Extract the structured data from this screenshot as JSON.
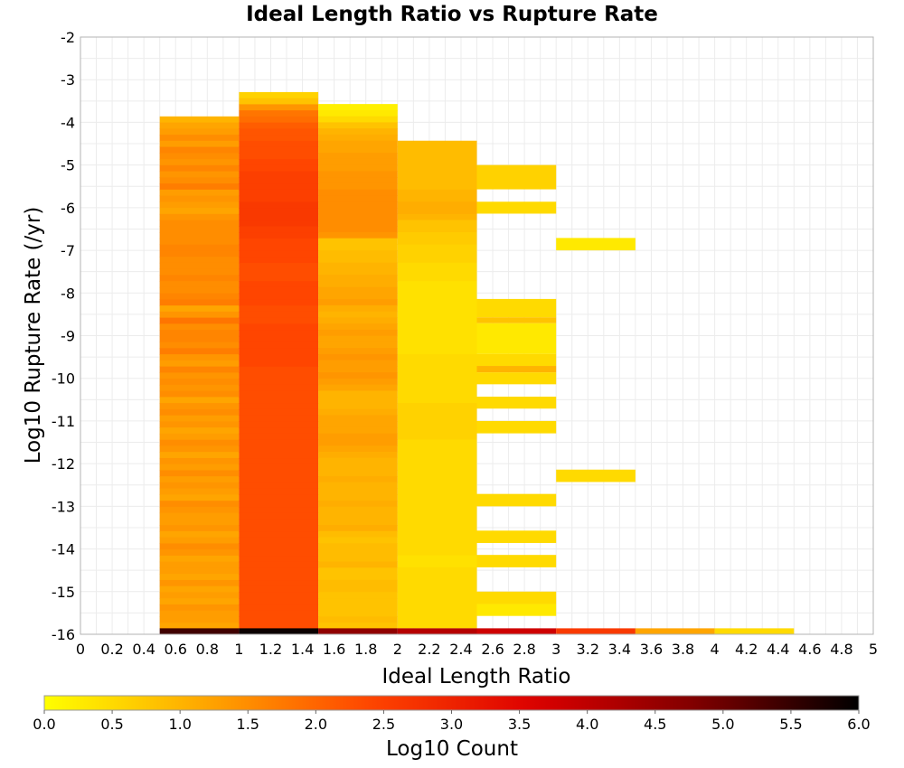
{
  "chart_data": {
    "type": "heatmap",
    "title": "Ideal Length Ratio vs Rupture Rate",
    "xlabel": "Ideal Length Ratio",
    "ylabel": "Log10 Rupture Rate (/yr)",
    "xlim": [
      0,
      5
    ],
    "ylim": [
      -16,
      -2
    ],
    "x_ticks": [
      "0",
      "0.2",
      "0.4",
      "0.6",
      "0.8",
      "1",
      "1.2",
      "1.4",
      "1.6",
      "1.8",
      "2",
      "2.2",
      "2.4",
      "2.6",
      "2.8",
      "3",
      "3.2",
      "3.4",
      "3.6",
      "3.8",
      "4",
      "4.2",
      "4.4",
      "4.6",
      "4.8",
      "5"
    ],
    "y_ticks": [
      "-2",
      "-3",
      "-4",
      "-5",
      "-6",
      "-7",
      "-8",
      "-9",
      "-10",
      "-11",
      "-12",
      "-13",
      "-14",
      "-15",
      "-16"
    ],
    "grid": true,
    "x_bin_width": 0.5,
    "y_bin_height": 0.143,
    "colorbar": {
      "label": "Log10 Count",
      "range": [
        0,
        6
      ],
      "ticks": [
        "0.0",
        "0.5",
        "1.0",
        "1.5",
        "2.0",
        "2.5",
        "3.0",
        "3.5",
        "4.0",
        "4.5",
        "5.0",
        "5.5",
        "6.0"
      ],
      "colors": [
        "#ffff00",
        "#ffa500",
        "#ff4500",
        "#dd0000",
        "#800000",
        "#000000"
      ]
    },
    "columns": [
      {
        "x": 0.75,
        "y_top": -3.86,
        "values": [
          1.0,
          1.2,
          1.3,
          1.5,
          1.3,
          1.6,
          1.5,
          1.4,
          1.6,
          1.4,
          1.5,
          1.7,
          1.3,
          1.4,
          1.3,
          1.2,
          1.4,
          1.5,
          1.5,
          1.5,
          1.5,
          1.6,
          1.6,
          1.5,
          1.5,
          1.5,
          1.6,
          1.5,
          1.5,
          1.6,
          1.7,
          1.2,
          1.4,
          1.8,
          1.5,
          1.6,
          1.6,
          1.5,
          1.7,
          1.4,
          1.3,
          1.6,
          1.4,
          1.5,
          1.4,
          1.5,
          1.2,
          1.4,
          1.5,
          1.3,
          1.4,
          1.2,
          1.3,
          1.5,
          1.4,
          1.2,
          1.4,
          1.3,
          1.5,
          1.3,
          1.4,
          1.3,
          1.2,
          1.5,
          1.4,
          1.3,
          1.3,
          1.4,
          1.2,
          1.3,
          1.5,
          1.4,
          1.2,
          1.3,
          1.3,
          1.2,
          1.4,
          1.2,
          1.3,
          1.2,
          1.4,
          1.3,
          1.3,
          1.2,
          1.3
        ]
      },
      {
        "x": 1.25,
        "y_top": -3.29,
        "values": [
          0.6,
          0.8,
          1.4,
          1.8,
          1.9,
          2.1,
          2.2,
          2.2,
          2.3,
          2.3,
          2.3,
          2.4,
          2.4,
          2.5,
          2.5,
          2.5,
          2.5,
          2.5,
          2.6,
          2.6,
          2.6,
          2.6,
          2.5,
          2.5,
          2.4,
          2.4,
          2.4,
          2.4,
          2.3,
          2.3,
          2.3,
          2.4,
          2.4,
          2.4,
          2.4,
          2.3,
          2.3,
          2.3,
          2.4,
          2.4,
          2.4,
          2.4,
          2.4,
          2.4,
          2.4,
          2.3,
          2.3,
          2.3,
          2.3,
          2.3,
          2.3,
          2.3,
          2.3,
          2.3,
          2.3,
          2.3,
          2.3,
          2.3,
          2.3,
          2.3,
          2.3,
          2.3,
          2.3,
          2.3,
          2.3,
          2.3,
          2.3,
          2.3,
          2.3,
          2.3,
          2.3,
          2.3,
          2.3,
          2.3,
          2.3,
          2.3,
          2.3,
          2.3,
          2.3,
          2.3,
          2.3,
          2.3,
          2.3,
          2.3,
          2.3,
          2.3,
          2.3,
          2.3,
          2.3
        ]
      },
      {
        "x": 1.75,
        "y_top": -3.57,
        "values": [
          0.2,
          0.3,
          0.5,
          0.8,
          1.0,
          1.1,
          1.2,
          1.2,
          1.3,
          1.3,
          1.3,
          1.4,
          1.4,
          1.4,
          1.5,
          1.5,
          1.5,
          1.5,
          1.5,
          1.5,
          1.5,
          1.4,
          0.8,
          0.8,
          0.9,
          0.9,
          1.0,
          1.0,
          1.1,
          1.1,
          1.2,
          1.2,
          1.3,
          1.1,
          1.0,
          1.1,
          1.2,
          1.3,
          1.2,
          1.2,
          1.3,
          1.4,
          1.3,
          1.3,
          1.4,
          1.3,
          1.2,
          1.0,
          1.0,
          1.0,
          1.1,
          1.2,
          1.2,
          1.2,
          1.3,
          1.3,
          1.2,
          1.1,
          1.0,
          1.0,
          1.0,
          1.1,
          1.0,
          1.0,
          1.0,
          1.1,
          1.0,
          1.0,
          1.0,
          1.1,
          0.9,
          0.8,
          0.9,
          0.9,
          0.9,
          1.0,
          0.8,
          0.8,
          0.9,
          0.9,
          0.8,
          0.8,
          0.8,
          0.8,
          0.9,
          0.8,
          0.8,
          0.8,
          0.8,
          0.9,
          0.8,
          0.7,
          0.7,
          0.7,
          0.7
        ]
      },
      {
        "x": 2.25,
        "y_top": -4.43,
        "values": [
          0.9,
          0.9,
          0.9,
          0.9,
          0.9,
          0.9,
          0.9,
          0.9,
          1.0,
          1.0,
          1.1,
          1.1,
          1.0,
          0.8,
          0.8,
          0.7,
          0.7,
          0.6,
          0.6,
          0.6,
          0.5,
          0.5,
          0.5,
          0.4,
          0.4,
          0.4,
          0.4,
          0.4,
          0.4,
          0.4,
          0.4,
          0.4,
          0.4,
          0.4,
          0.4,
          0.5,
          0.5,
          0.5,
          0.5,
          0.5,
          0.5,
          0.5,
          0.5,
          0.6,
          0.6,
          0.6,
          0.6,
          0.6,
          0.6,
          0.5,
          0.5,
          0.5,
          0.5,
          0.5,
          0.5,
          0.5,
          0.5,
          0.5,
          0.5,
          0.5,
          0.5,
          0.5,
          0.5,
          0.5,
          0.5,
          0.5,
          0.5,
          0.5,
          0.4,
          0.4,
          0.4,
          0.5,
          0.5,
          0.5,
          0.5,
          0.5,
          0.5,
          0.5
        ]
      }
    ],
    "cells": [
      {
        "x": 2.25,
        "y0": -13.29,
        "y1": -13.0,
        "value": 0.5
      },
      {
        "x": 2.25,
        "y0": -14.14,
        "y1": -13.57,
        "value": 0.5
      },
      {
        "x": 2.25,
        "y0": -15.43,
        "y1": -14.43,
        "value": 0.5
      },
      {
        "x": 2.25,
        "y0": -15.86,
        "y1": -15.57,
        "value": 0.5
      },
      {
        "x": 2.75,
        "y0": -5.57,
        "y1": -5.0,
        "value": 0.6
      },
      {
        "x": 2.75,
        "y0": -6.14,
        "y1": -5.86,
        "value": 0.5
      },
      {
        "x": 2.75,
        "y0": -8.57,
        "y1": -8.14,
        "value": 0.5
      },
      {
        "x": 2.75,
        "y0": -8.71,
        "y1": -8.57,
        "value": 0.8
      },
      {
        "x": 2.75,
        "y0": -9.43,
        "y1": -8.71,
        "value": 0.3
      },
      {
        "x": 2.75,
        "y0": -9.71,
        "y1": -9.43,
        "value": 0.5
      },
      {
        "x": 2.75,
        "y0": -9.86,
        "y1": -9.71,
        "value": 1.0
      },
      {
        "x": 2.75,
        "y0": -10.14,
        "y1": -9.86,
        "value": 0.5
      },
      {
        "x": 2.75,
        "y0": -10.71,
        "y1": -10.43,
        "value": 0.5
      },
      {
        "x": 2.75,
        "y0": -11.29,
        "y1": -11.0,
        "value": 0.5
      },
      {
        "x": 2.75,
        "y0": -13.0,
        "y1": -12.71,
        "value": 0.5
      },
      {
        "x": 2.75,
        "y0": -13.86,
        "y1": -13.57,
        "value": 0.5
      },
      {
        "x": 2.75,
        "y0": -14.43,
        "y1": -14.14,
        "value": 0.5
      },
      {
        "x": 2.75,
        "y0": -15.29,
        "y1": -15.0,
        "value": 0.5
      },
      {
        "x": 2.75,
        "y0": -15.57,
        "y1": -15.29,
        "value": 0.3
      },
      {
        "x": 3.25,
        "y0": -7.0,
        "y1": -6.71,
        "value": 0.3
      },
      {
        "x": 3.25,
        "y0": -12.43,
        "y1": -12.14,
        "value": 0.5
      },
      {
        "x": 0.75,
        "y0": -16.0,
        "y1": -15.86,
        "value": 5.4
      },
      {
        "x": 1.25,
        "y0": -16.0,
        "y1": -15.86,
        "value": 5.9
      },
      {
        "x": 1.75,
        "y0": -16.0,
        "y1": -15.86,
        "value": 4.6
      },
      {
        "x": 2.25,
        "y0": -16.0,
        "y1": -15.86,
        "value": 4.1
      },
      {
        "x": 2.75,
        "y0": -16.0,
        "y1": -15.86,
        "value": 3.8
      },
      {
        "x": 3.25,
        "y0": -16.0,
        "y1": -15.86,
        "value": 2.6
      },
      {
        "x": 3.75,
        "y0": -16.0,
        "y1": -15.86,
        "value": 1.2
      },
      {
        "x": 4.25,
        "y0": -16.0,
        "y1": -15.86,
        "value": 0.5
      }
    ]
  }
}
